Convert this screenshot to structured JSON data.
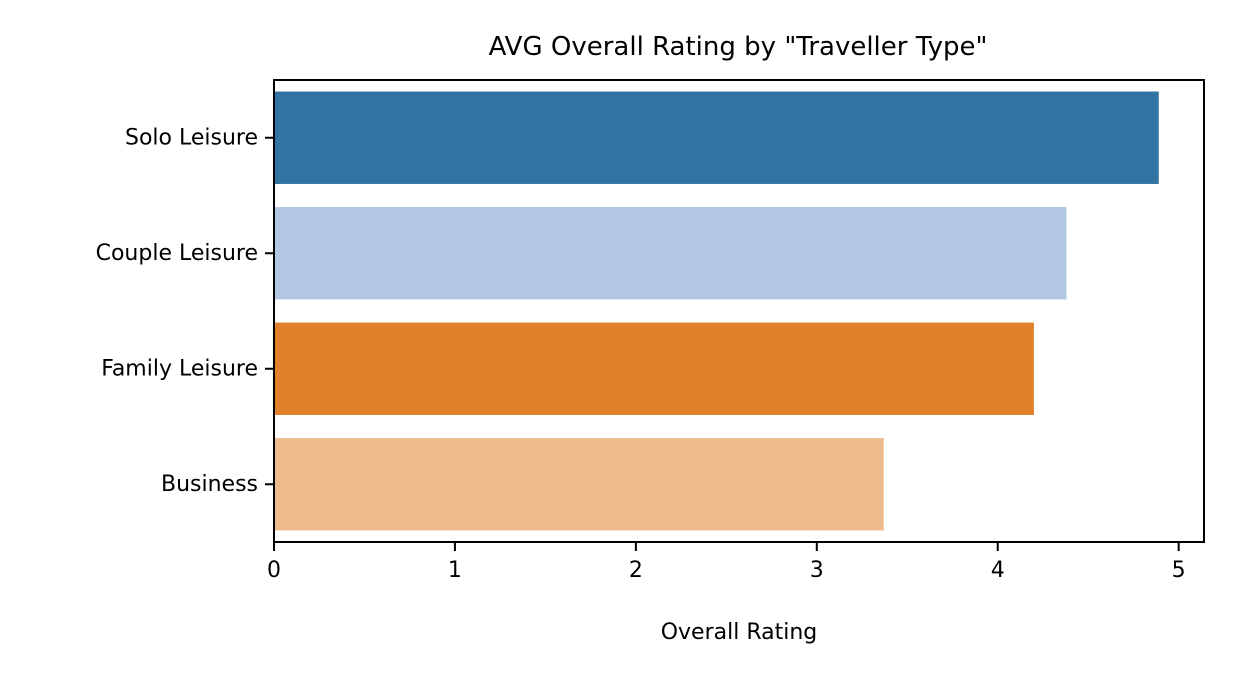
{
  "chart_data": {
    "type": "bar",
    "orientation": "horizontal",
    "title": "AVG Overall Rating by \"Traveller Type\"",
    "xlabel": "Overall Rating",
    "ylabel": "",
    "categories": [
      "Solo Leisure",
      "Couple Leisure",
      "Family Leisure",
      "Business"
    ],
    "values": [
      4.89,
      4.38,
      4.2,
      3.37
    ],
    "colors": [
      "#3274a1",
      "#b3c7e2",
      "#e1812c",
      "#eebb8c"
    ],
    "xlim": [
      0,
      5.14
    ],
    "xticks": [
      0,
      1,
      2,
      3,
      4,
      5
    ],
    "grid": false,
    "legend": false
  }
}
